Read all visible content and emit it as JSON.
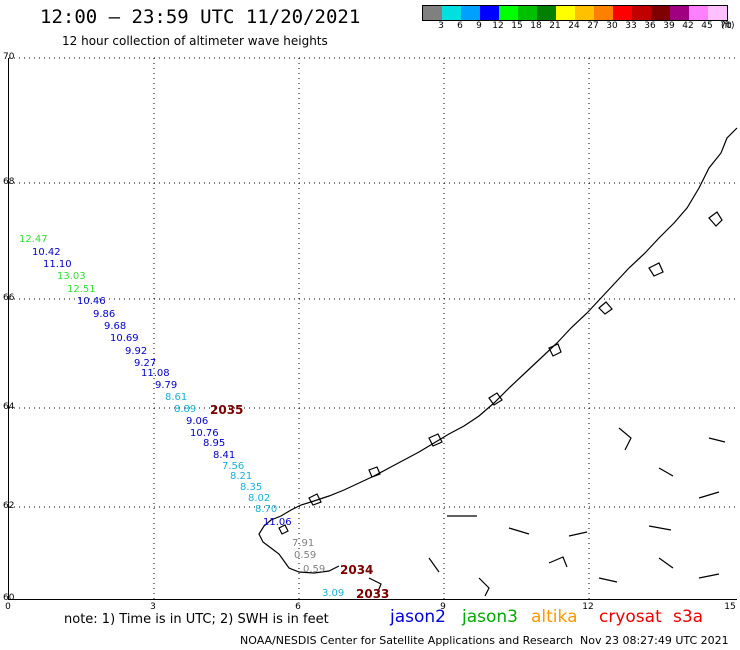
{
  "header": {
    "title": "12:00 – 23:59 UTC 11/20/2021",
    "subtitle": "12 hour collection of altimeter wave heights"
  },
  "colorbar": {
    "colors": [
      "#808080",
      "#00e0e0",
      "#00a0ff",
      "#0000ff",
      "#00ff00",
      "#00c000",
      "#008000",
      "#ffff00",
      "#ffc000",
      "#ff8000",
      "#ff0000",
      "#c00000",
      "#800000",
      "#a00080",
      "#ff80ff",
      "#ffc0ff",
      "#000000"
    ],
    "labels": [
      "3",
      "6",
      "9",
      "12",
      "15",
      "18",
      "21",
      "24",
      "27",
      "30",
      "33",
      "36",
      "39",
      "42",
      "45",
      "70",
      "(ft)"
    ]
  },
  "axes": {
    "y_ticks": [
      "70",
      "68",
      "66",
      "64",
      "62",
      "60"
    ],
    "x_ticks": [
      "0",
      "3",
      "6",
      "9",
      "12",
      "15"
    ]
  },
  "wave_labels": [
    {
      "text": "12.47",
      "color": "#33dd33"
    },
    {
      "text": "10.42",
      "color": "#0000cc"
    },
    {
      "text": "11.10",
      "color": "#0000cc"
    },
    {
      "text": "13.03",
      "color": "#33dd33"
    },
    {
      "text": "12.51",
      "color": "#33dd33"
    },
    {
      "text": "10.46",
      "color": "#0000cc"
    },
    {
      "text": "9.86",
      "color": "#0000cc"
    },
    {
      "text": "9.68",
      "color": "#0000cc"
    },
    {
      "text": "10.69",
      "color": "#0000cc"
    },
    {
      "text": "9.92",
      "color": "#0000cc"
    },
    {
      "text": "9.27",
      "color": "#0000cc"
    },
    {
      "text": "11.08",
      "color": "#0000cc"
    },
    {
      "text": "9.79",
      "color": "#0000cc"
    },
    {
      "text": "8.61",
      "color": "#1ab0d8"
    },
    {
      "text": "8.89",
      "color": "#1ab0d8"
    },
    {
      "text": "9.06",
      "color": "#0000cc"
    },
    {
      "text": "10.76",
      "color": "#0000cc"
    },
    {
      "text": "8.95",
      "color": "#0000cc"
    },
    {
      "text": "8.41",
      "color": "#0000cc"
    },
    {
      "text": "7.56",
      "color": "#1ab0d8"
    },
    {
      "text": "8.21",
      "color": "#1ab0d8"
    },
    {
      "text": "8.35",
      "color": "#1ab0d8"
    },
    {
      "text": "8.02",
      "color": "#1ab0d8"
    },
    {
      "text": "8.70",
      "color": "#1ab0d8"
    },
    {
      "text": "11.06",
      "color": "#0000cc"
    },
    {
      "text": "7.91",
      "color": "#808080"
    },
    {
      "text": "0.59",
      "color": "#808080"
    },
    {
      "text": "0.59",
      "color": "#808080"
    },
    {
      "text": "3.09",
      "color": "#1ab0d8"
    }
  ],
  "time_labels": [
    "2035",
    "2034",
    "2033"
  ],
  "note": "note: 1) Time is in UTC; 2) SWH is in feet",
  "satellites": [
    {
      "name": "jason2",
      "color": "#0000dd"
    },
    {
      "name": "jason3",
      "color": "#00aa00"
    },
    {
      "name": "altika",
      "color": "#ff9900"
    },
    {
      "name": "cryosat",
      "color": "#ee0000"
    },
    {
      "name": "s3a",
      "color": "#ee0000"
    }
  ],
  "footer": {
    "credit": "NOAA/NESDIS Center for Satellite Applications and Research",
    "timestamp": "Nov 23 08:27:49 UTC 2021"
  }
}
